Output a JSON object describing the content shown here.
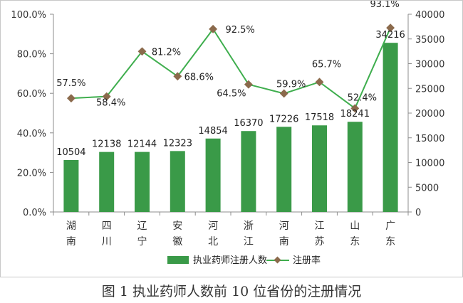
{
  "caption": "图 1 执业药师人数前 10 位省份的注册情况",
  "chart_data": {
    "type": "bar",
    "categories": [
      "湖南",
      "四川",
      "辽宁",
      "安徽",
      "河北",
      "浙江",
      "河南",
      "江苏",
      "山东",
      "广东"
    ],
    "series": [
      {
        "name": "执业药师注册人数",
        "type": "bar",
        "axis": "right",
        "color": "#3a9a48",
        "values": [
          10504,
          12138,
          12144,
          12323,
          14854,
          16370,
          17226,
          17518,
          18241,
          34216
        ],
        "labels": [
          "10504",
          "12138",
          "12144",
          "12323",
          "14854",
          "16370",
          "17226",
          "17518",
          "18241",
          "34216"
        ]
      },
      {
        "name": "注册率",
        "type": "line",
        "axis": "left",
        "color": "#3fae4e",
        "marker_color": "#8b6a4c",
        "values": [
          57.5,
          58.4,
          81.2,
          68.6,
          92.5,
          64.5,
          59.9,
          65.7,
          52.4,
          93.1
        ],
        "labels": [
          "57.5%",
          "58.4%",
          "81.2%",
          "68.6%",
          "92.5%",
          "64.5%",
          "59.9%",
          "65.7%",
          "52.4%",
          "93.1%"
        ]
      }
    ],
    "y_left": {
      "range": [
        0,
        100
      ],
      "ticks": [
        "0.0%",
        "20.0%",
        "40.0%",
        "60.0%",
        "80.0%",
        "100.0%"
      ]
    },
    "y_right": {
      "range": [
        0,
        40000
      ],
      "ticks": [
        "0",
        "5000",
        "10000",
        "15000",
        "20000",
        "25000",
        "30000",
        "35000",
        "40000"
      ]
    },
    "grid": false,
    "legend_position": "bottom"
  }
}
